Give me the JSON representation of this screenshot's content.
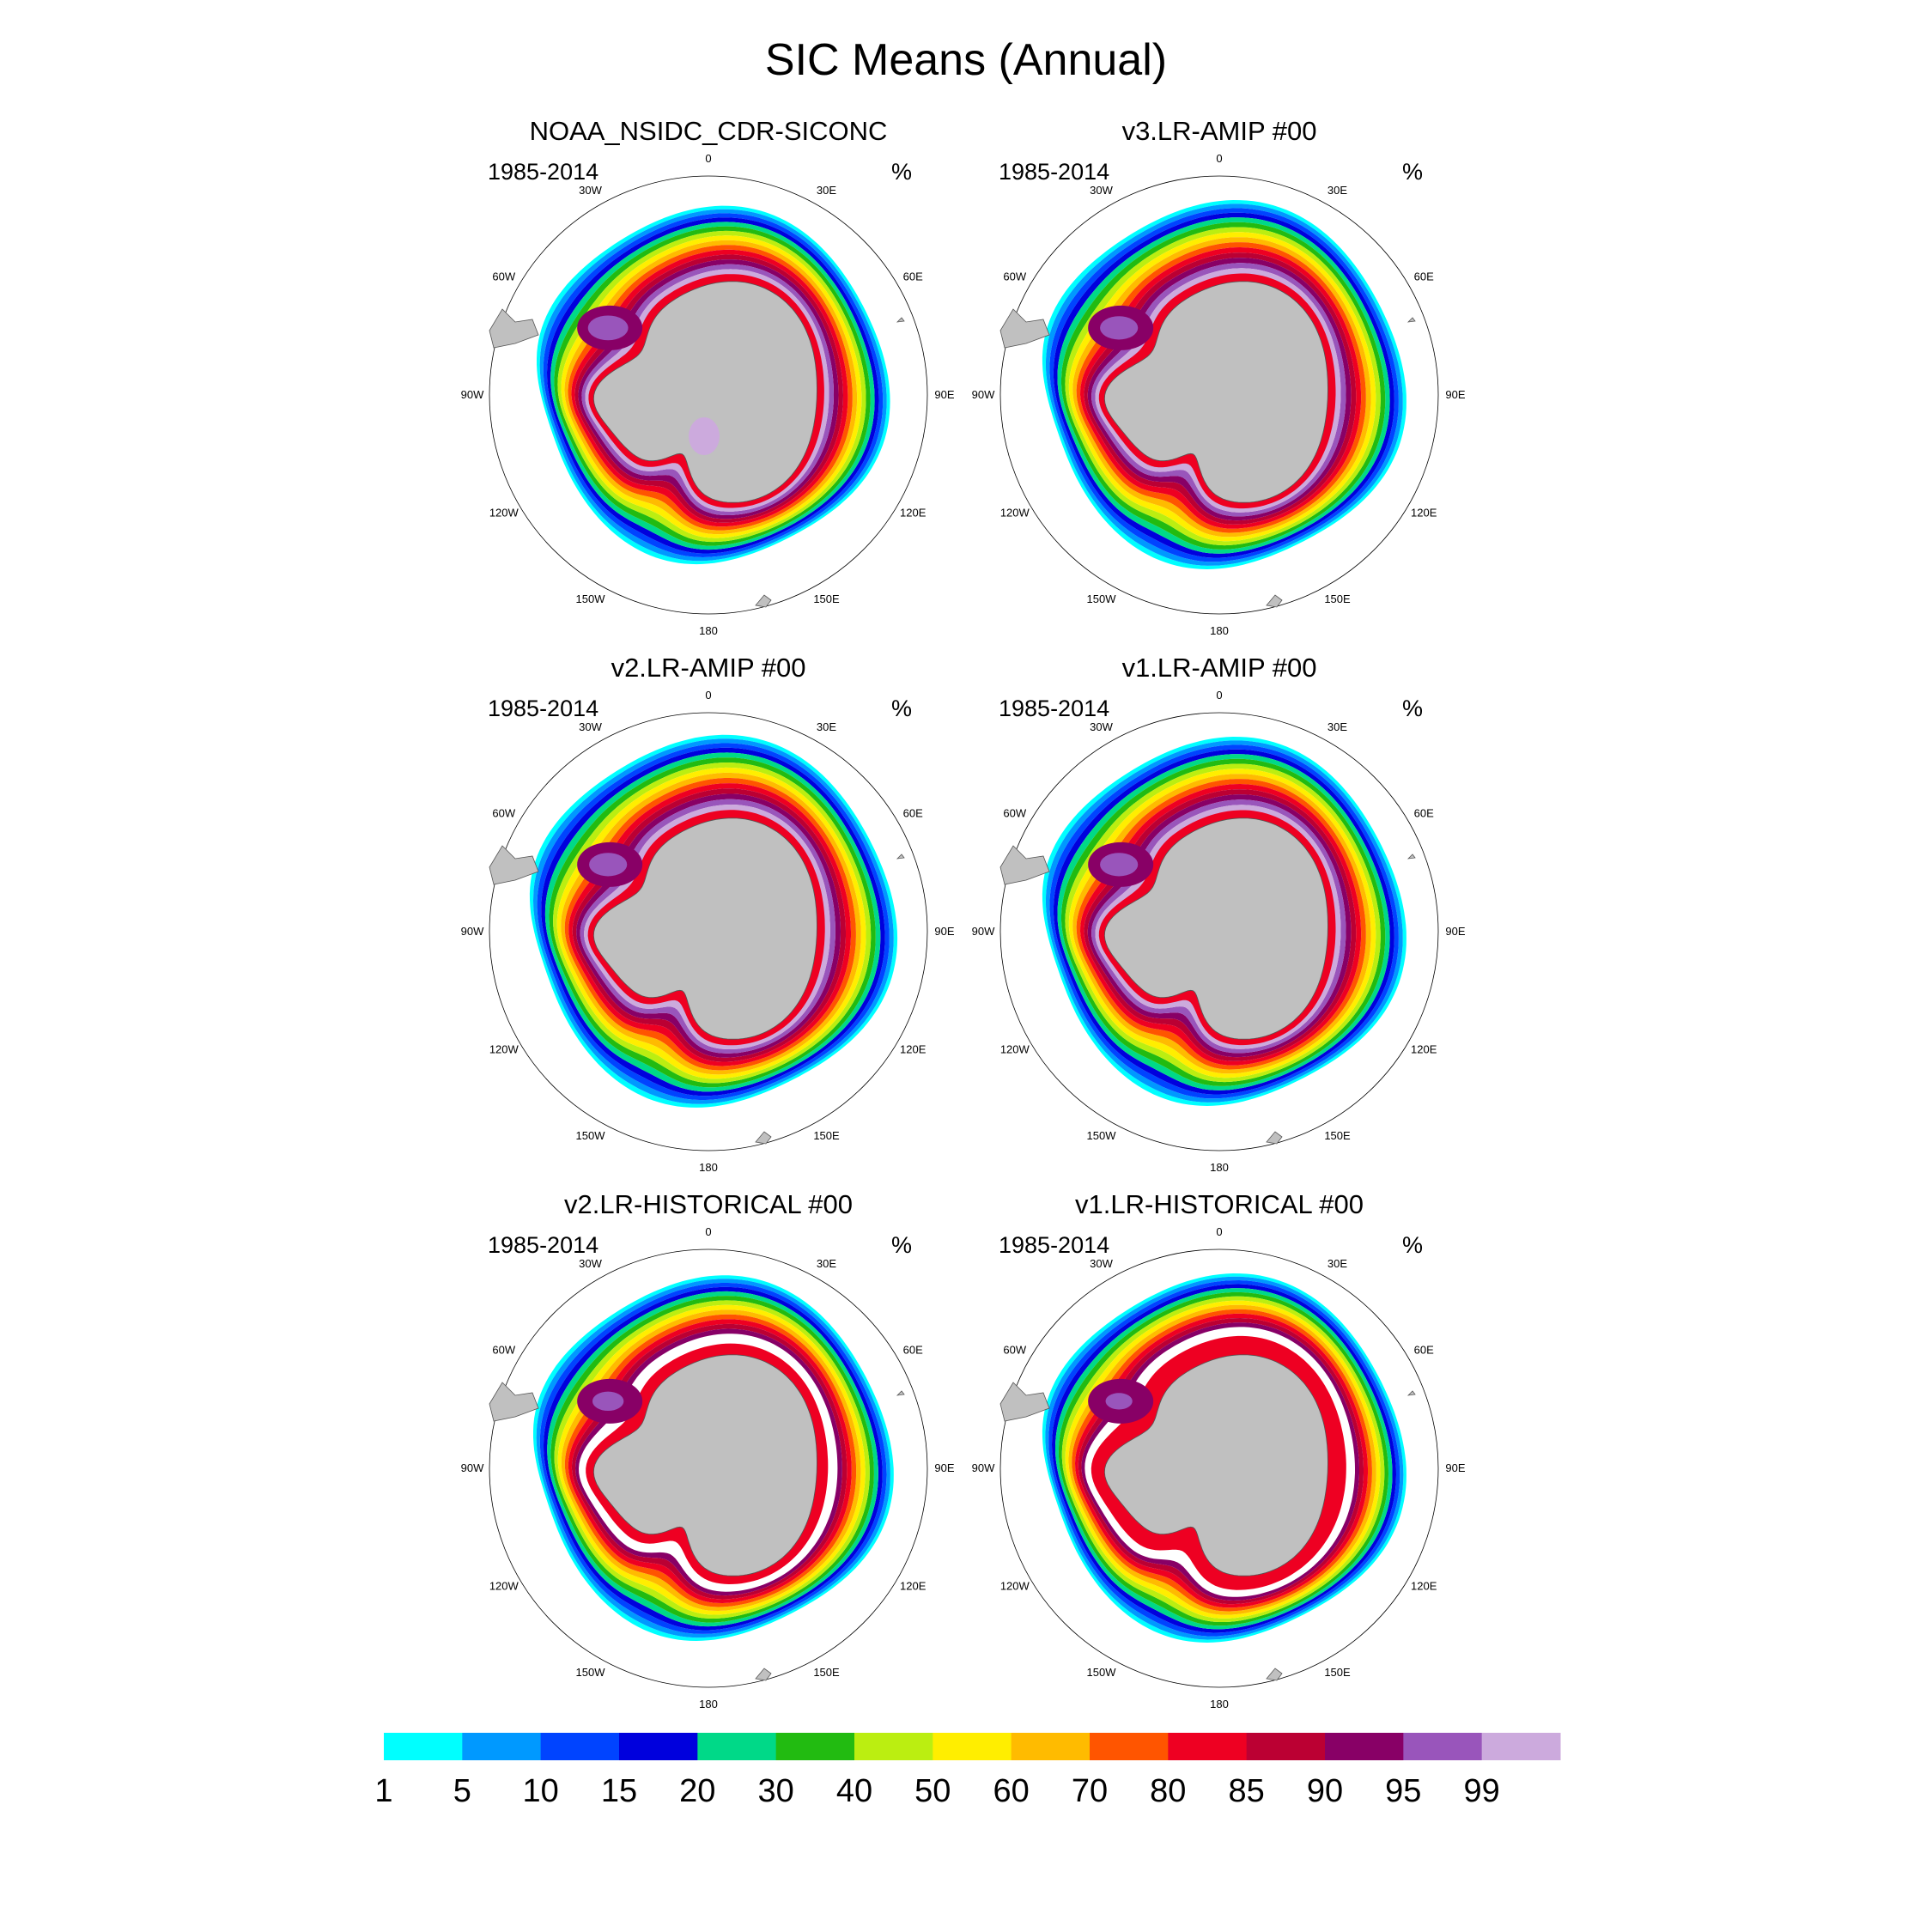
{
  "title": "SIC Means (Annual)",
  "chart_data": {
    "type": "heatmap",
    "projection": "south-polar-stereographic",
    "units": "%",
    "period": "1985-2014",
    "panels": [
      {
        "id": "obs",
        "title": "NOAA_NSIDC_CDR-SICONC",
        "left": "1985-2014",
        "right": "%",
        "extent_scale": 1.0,
        "core_scale": 1.0,
        "weddell_intensity": 0.9,
        "land_ice_purple": true
      },
      {
        "id": "v3amip",
        "title": "v3.LR-AMIP  #00",
        "left": "1985-2014",
        "right": "%",
        "extent_scale": 1.03,
        "core_scale": 1.0,
        "weddell_intensity": 0.85,
        "land_ice_purple": false
      },
      {
        "id": "v2amip",
        "title": "v2.LR-AMIP  #00",
        "left": "1985-2014",
        "right": "%",
        "extent_scale": 1.04,
        "core_scale": 1.0,
        "weddell_intensity": 0.85,
        "land_ice_purple": false
      },
      {
        "id": "v1amip",
        "title": "v1.LR-AMIP  #00",
        "left": "1985-2014",
        "right": "%",
        "extent_scale": 1.03,
        "core_scale": 1.0,
        "weddell_intensity": 0.85,
        "land_ice_purple": false
      },
      {
        "id": "v2hist",
        "title": "v2.LR-HISTORICAL  #00",
        "left": "1985-2014",
        "right": "%",
        "extent_scale": 1.02,
        "core_scale": 0.95,
        "weddell_intensity": 0.7,
        "land_ice_purple": false
      },
      {
        "id": "v1hist",
        "title": "v1.LR-HISTORICAL  #00",
        "left": "1985-2014",
        "right": "%",
        "extent_scale": 1.03,
        "core_scale": 0.85,
        "weddell_intensity": 0.6,
        "land_ice_purple": false
      }
    ],
    "longitude_labels": [
      "0",
      "30E",
      "60E",
      "90E",
      "120E",
      "150E",
      "180",
      "150W",
      "120W",
      "90W",
      "60W",
      "30W"
    ],
    "colorbar": {
      "levels": [
        "1",
        "5",
        "10",
        "15",
        "20",
        "30",
        "40",
        "50",
        "60",
        "70",
        "80",
        "85",
        "90",
        "95",
        "99"
      ],
      "colors": [
        "#00ffff",
        "#0099ff",
        "#0044ff",
        "#0000dd",
        "#00d988",
        "#22bb11",
        "#bbee11",
        "#ffee00",
        "#ffbb00",
        "#ff5500",
        "#ee0022",
        "#bb0033",
        "#880066",
        "#9955bb",
        "#ccaadd"
      ]
    },
    "land_color": "#c0c0c0"
  }
}
